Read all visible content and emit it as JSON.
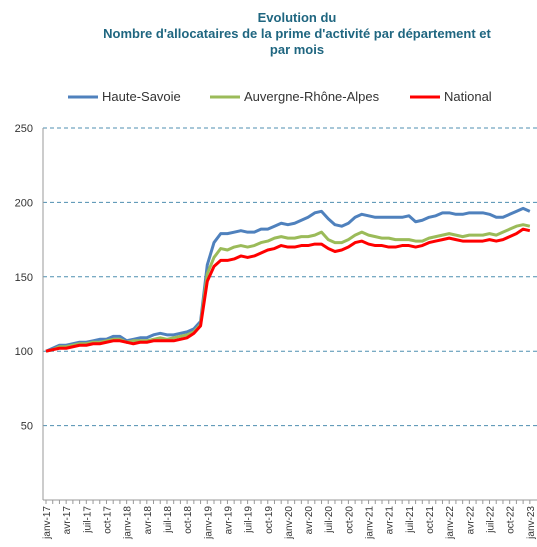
{
  "chart_data": {
    "type": "line",
    "title": [
      "Evolution du",
      "Nombre d'allocataires de la prime d'activité par département et",
      "par mois"
    ],
    "categories": [
      "janv-17",
      null,
      null,
      "avr-17",
      null,
      null,
      "juil-17",
      null,
      null,
      "oct-17",
      null,
      null,
      "janv-18",
      null,
      null,
      "avr-18",
      null,
      null,
      "juil-18",
      null,
      null,
      "oct-18",
      null,
      null,
      "janv-19",
      null,
      null,
      "avr-19",
      null,
      null,
      "juil-19",
      null,
      null,
      "oct-19",
      null,
      null,
      "janv-20",
      null,
      null,
      "avr-20",
      null,
      null,
      "juil-20",
      null,
      null,
      "oct-20",
      null,
      null,
      "janv-21",
      null,
      null,
      "avr-21",
      null,
      null,
      "juil-21",
      null,
      null,
      "oct-21",
      null,
      null,
      "janv-22",
      null,
      null,
      "avr-22",
      null,
      null,
      "juil-22",
      null,
      null,
      "oct-22",
      null,
      null,
      "janv-23"
    ],
    "series": [
      {
        "name": "Haute-Savoie",
        "color": "#4f81bd",
        "values": [
          100,
          102,
          104,
          104,
          105,
          106,
          106,
          107,
          108,
          108,
          110,
          110,
          107,
          108,
          109,
          109,
          111,
          112,
          111,
          111,
          112,
          113,
          115,
          120,
          158,
          173,
          179,
          179,
          180,
          181,
          180,
          180,
          182,
          182,
          184,
          186,
          185,
          186,
          188,
          190,
          193,
          194,
          189,
          185,
          184,
          186,
          190,
          192,
          191,
          190,
          190,
          190,
          190,
          190,
          191,
          187,
          188,
          190,
          191,
          193,
          193,
          192,
          192,
          193,
          193,
          193,
          192,
          190,
          190,
          192,
          194,
          196,
          194
        ]
      },
      {
        "name": "Auvergne-Rhône-Alpes",
        "color": "#9bbb59",
        "values": [
          100,
          101,
          103,
          103,
          104,
          105,
          105,
          106,
          106,
          107,
          108,
          108,
          106,
          107,
          107,
          107,
          108,
          109,
          108,
          109,
          110,
          111,
          113,
          118,
          152,
          163,
          169,
          168,
          170,
          171,
          170,
          171,
          173,
          174,
          176,
          177,
          176,
          176,
          177,
          177,
          178,
          180,
          175,
          173,
          173,
          175,
          178,
          180,
          178,
          177,
          176,
          176,
          175,
          175,
          175,
          174,
          174,
          176,
          177,
          178,
          179,
          178,
          177,
          178,
          178,
          178,
          179,
          178,
          180,
          182,
          184,
          185,
          184
        ]
      },
      {
        "name": "National",
        "color": "#ff0000",
        "values": [
          100,
          101,
          102,
          102,
          103,
          104,
          104,
          105,
          105,
          106,
          107,
          107,
          106,
          105,
          106,
          106,
          107,
          107,
          107,
          107,
          108,
          109,
          112,
          117,
          147,
          157,
          161,
          161,
          162,
          164,
          163,
          164,
          166,
          168,
          169,
          171,
          170,
          170,
          171,
          171,
          172,
          172,
          169,
          167,
          168,
          170,
          173,
          174,
          172,
          171,
          171,
          170,
          170,
          171,
          171,
          170,
          171,
          173,
          174,
          175,
          176,
          175,
          174,
          174,
          174,
          174,
          175,
          174,
          175,
          177,
          179,
          182,
          181
        ]
      }
    ],
    "ylim": [
      0,
      250
    ],
    "yticks": [
      50,
      100,
      150,
      200,
      250
    ],
    "grid": true
  }
}
